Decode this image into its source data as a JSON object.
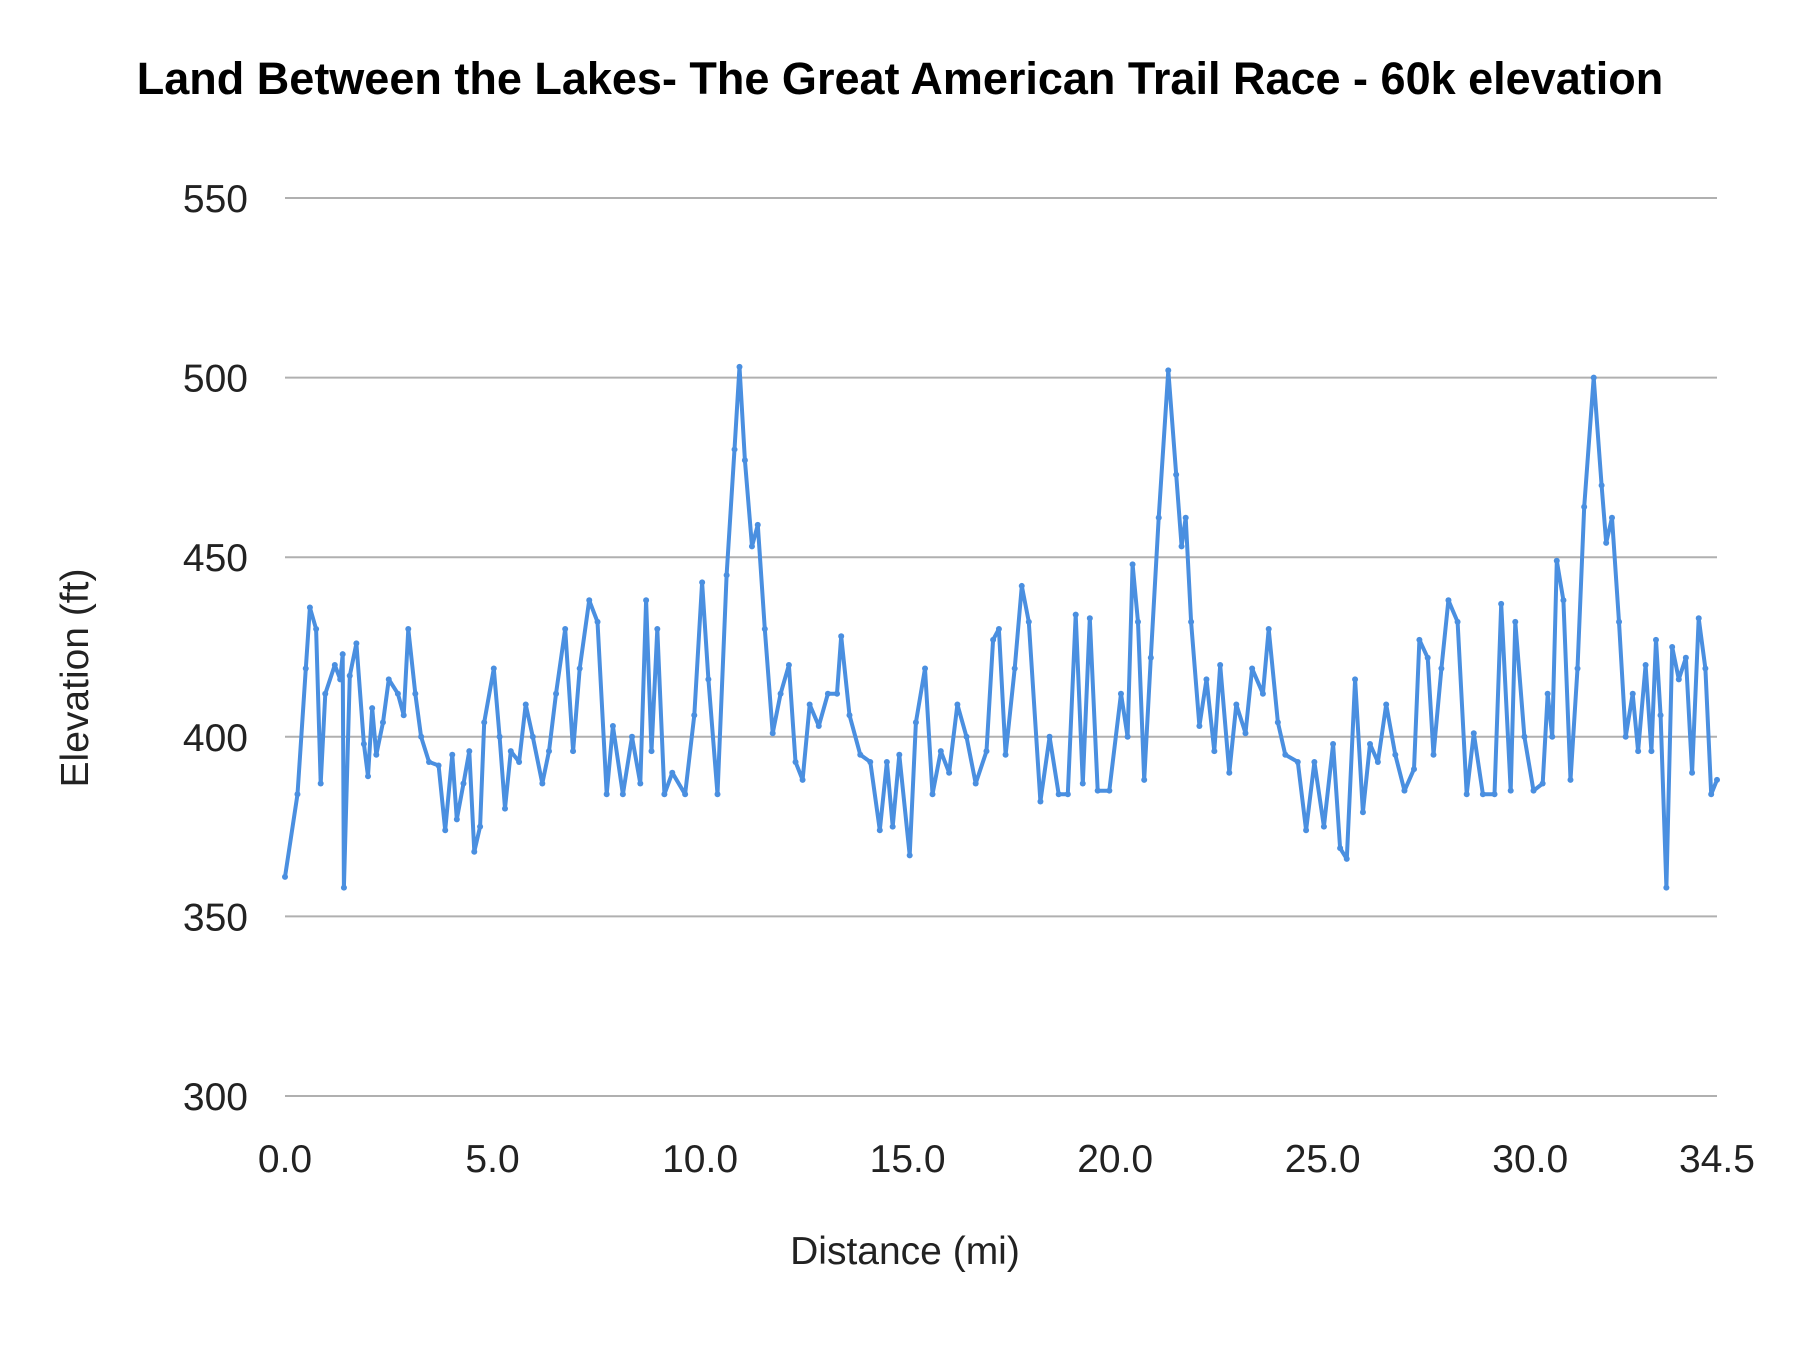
{
  "chart_data": {
    "type": "line",
    "title": "Land Between the Lakes- The Great American Trail Race - 60k elevation",
    "xlabel": "Distance (mi)",
    "ylabel": "Elevation (ft)",
    "xlim": [
      0,
      34.5
    ],
    "ylim": [
      300,
      550
    ],
    "x_ticks": [
      "0.0",
      "5.0",
      "10.0",
      "15.0",
      "20.0",
      "25.0",
      "30.0",
      "34.5"
    ],
    "y_ticks": [
      "300",
      "350",
      "400",
      "450",
      "500",
      "550"
    ],
    "grid": "horizontal",
    "legend": "none",
    "colors": {
      "line": "#4a8fe0",
      "grid": "#b0b0b0"
    },
    "series": [
      {
        "x": [
          0,
          0.3,
          0.5,
          0.6,
          0.75,
          0.86,
          0.97,
          1.2,
          1.33,
          1.39,
          1.42,
          1.56,
          1.72,
          1.9,
          2.0,
          2.1,
          2.2,
          2.36,
          2.5,
          2.72,
          2.86,
          2.97,
          3.14,
          3.28,
          3.47,
          3.7,
          3.86,
          4.03,
          4.14,
          4.3,
          4.44,
          4.56,
          4.7,
          4.8,
          5.03,
          5.17,
          5.3,
          5.44,
          5.64,
          5.8,
          5.97,
          6.2,
          6.36,
          6.53,
          6.75,
          6.94,
          7.1,
          7.33,
          7.53,
          7.75,
          7.9,
          8.14,
          8.36,
          8.56,
          8.7,
          8.83,
          8.97,
          9.14,
          9.33,
          9.64,
          9.86,
          10.05,
          10.2,
          10.42,
          10.64,
          10.83,
          10.95,
          11.08,
          11.25,
          11.39,
          11.56,
          11.75,
          11.94,
          12.14,
          12.3,
          12.47,
          12.64,
          12.86,
          13.08,
          13.3,
          13.4,
          13.6,
          13.86,
          14.1,
          14.33,
          14.5,
          14.64,
          14.8,
          15.05,
          15.2,
          15.42,
          15.6,
          15.8,
          16.0,
          16.2,
          16.42,
          16.64,
          16.9,
          17.06,
          17.2,
          17.36,
          17.58,
          17.75,
          17.92,
          18.2,
          18.42,
          18.64,
          18.86,
          19.05,
          19.22,
          19.39,
          19.58,
          19.86,
          20.14,
          20.3,
          20.42,
          20.55,
          20.7,
          20.86,
          21.05,
          21.28,
          21.47,
          21.6,
          21.7,
          21.83,
          22.03,
          22.2,
          22.39,
          22.53,
          22.75,
          22.92,
          23.14,
          23.3,
          23.56,
          23.7,
          23.92,
          24.1,
          24.4,
          24.6,
          24.8,
          25.03,
          25.25,
          25.42,
          25.58,
          25.78,
          25.97,
          26.14,
          26.33,
          26.53,
          26.75,
          26.97,
          27.2,
          27.33,
          27.53,
          27.67,
          27.86,
          28.03,
          28.25,
          28.47,
          28.64,
          28.86,
          29.14,
          29.3,
          29.53,
          29.64,
          29.86,
          30.08,
          30.3,
          30.42,
          30.53,
          30.64,
          30.8,
          30.97,
          31.14,
          31.3,
          31.53,
          31.72,
          31.83,
          31.97,
          32.14,
          32.3,
          32.47,
          32.6,
          32.78,
          32.92,
          33.03,
          33.14,
          33.28,
          33.42,
          33.58,
          33.75,
          33.9,
          34.06,
          34.22,
          34.36,
          34.5
        ],
        "y": [
          361,
          384,
          419,
          436,
          430,
          387,
          412,
          420,
          416,
          423,
          358,
          417,
          426,
          398,
          389,
          408,
          395,
          404,
          416,
          412,
          406,
          430,
          412,
          400,
          393,
          392,
          374,
          395,
          377,
          387,
          396,
          368,
          375,
          404,
          419,
          400,
          380,
          396,
          393,
          409,
          400,
          387,
          396,
          412,
          430,
          396,
          419,
          438,
          432,
          384,
          403,
          384,
          400,
          387,
          438,
          396,
          430,
          384,
          390,
          384,
          406,
          443,
          416,
          384,
          445,
          480,
          503,
          477,
          453,
          459,
          430,
          401,
          412,
          420,
          393,
          388,
          409,
          403,
          412,
          412,
          428,
          406,
          395,
          393,
          374,
          393,
          375,
          395,
          367,
          404,
          419,
          384,
          396,
          390,
          409,
          400,
          387,
          396,
          427,
          430,
          395,
          419,
          442,
          432,
          382,
          400,
          384,
          384,
          434,
          387,
          433,
          385,
          385,
          412,
          400,
          448,
          432,
          388,
          422,
          461,
          502,
          473,
          453,
          461,
          432,
          403,
          416,
          396,
          420,
          390,
          409,
          401,
          419,
          412,
          430,
          404,
          395,
          393,
          374,
          393,
          375,
          398,
          369,
          366,
          416,
          379,
          398,
          393,
          409,
          395,
          385,
          391,
          427,
          422,
          395,
          419,
          438,
          432,
          384,
          401,
          384,
          384,
          437,
          385,
          432,
          400,
          385,
          387,
          412,
          400,
          449,
          438,
          388,
          419,
          464,
          500,
          470,
          454,
          461,
          432,
          400,
          412,
          396,
          420,
          396,
          427,
          406,
          358,
          425,
          416,
          422,
          390,
          433,
          419,
          384,
          388
        ]
      }
    ]
  }
}
